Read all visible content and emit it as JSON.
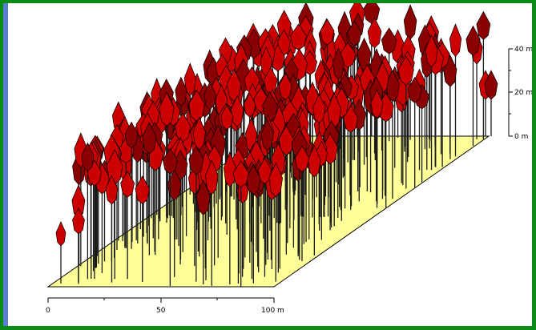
{
  "colors": {
    "frame": "#0a8a16",
    "strip": "#5b7fd0",
    "ground": "#ffff99",
    "ground_edge": "#000000",
    "crown": "#cc0000",
    "crown_shade": "#8a0000",
    "trunk": "#1a1a1a"
  },
  "height_scale": {
    "unit": "m",
    "ticks": [
      {
        "value": 0,
        "label": "0 m"
      },
      {
        "value": 20,
        "label": "20 m"
      },
      {
        "value": 40,
        "label": "40 m"
      }
    ]
  },
  "distance_scale": {
    "unit": "m",
    "ticks": [
      {
        "value": 0,
        "label": "0"
      },
      {
        "value": 50,
        "label": "50"
      },
      {
        "value": 100,
        "label": "100 m"
      }
    ]
  },
  "stand": {
    "description_icon": "tree-stand-3d",
    "tree_count_visible": 320
  }
}
